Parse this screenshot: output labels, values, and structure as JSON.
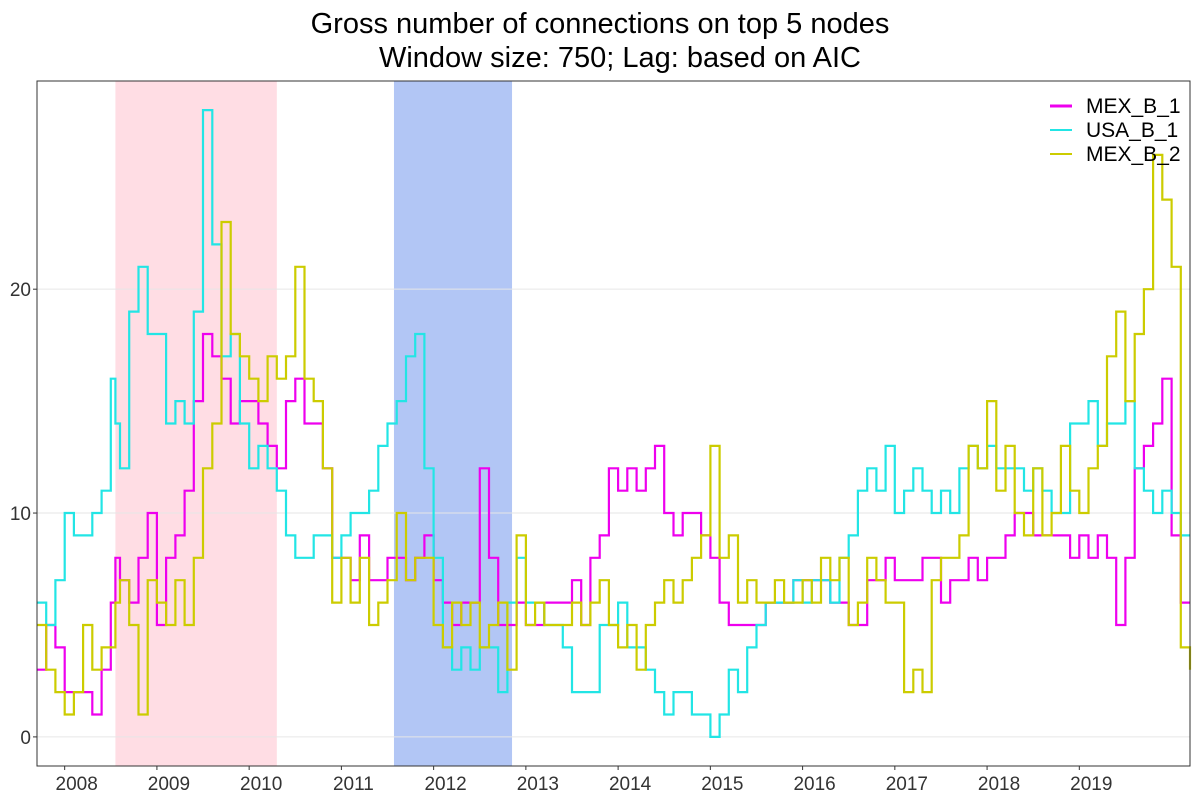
{
  "chart_data": {
    "type": "line",
    "title": "Gross number of connections on top 5 nodes",
    "subtitle": "Window size: 750; Lag: based on AIC",
    "xlabel": "",
    "ylabel": "",
    "xlim": [
      2007.7,
      2020.2
    ],
    "ylim": [
      -1.3,
      29.3
    ],
    "grid": true,
    "legend_position": "top-right",
    "x_ticks": [
      {
        "value": 2008.0,
        "label": "2008"
      },
      {
        "value": 2009.0,
        "label": "2009"
      },
      {
        "value": 2010.0,
        "label": "2010"
      },
      {
        "value": 2011.0,
        "label": "2011"
      },
      {
        "value": 2012.0,
        "label": "2012"
      },
      {
        "value": 2013.0,
        "label": "2013"
      },
      {
        "value": 2014.0,
        "label": "2014"
      },
      {
        "value": 2015.0,
        "label": "2015"
      },
      {
        "value": 2016.0,
        "label": "2016"
      },
      {
        "value": 2017.0,
        "label": "2017"
      },
      {
        "value": 2018.0,
        "label": "2018"
      },
      {
        "value": 2019.0,
        "label": "2019"
      }
    ],
    "y_ticks": [
      {
        "value": 0,
        "label": "0"
      },
      {
        "value": 10,
        "label": "10"
      },
      {
        "value": 20,
        "label": "20"
      }
    ],
    "shaded_regions": [
      {
        "x0": 2008.55,
        "x1": 2010.3,
        "color": "#FFDDE4"
      },
      {
        "x0": 2011.57,
        "x1": 2012.85,
        "color": "#B2C6F5"
      }
    ],
    "series": [
      {
        "name": "MEX_B_1",
        "color": "#EE00EE",
        "x": [
          2007.7,
          2007.8,
          2007.9,
          2008.0,
          2008.1,
          2008.2,
          2008.3,
          2008.4,
          2008.5,
          2008.55,
          2008.6,
          2008.7,
          2008.8,
          2008.9,
          2009.0,
          2009.1,
          2009.2,
          2009.3,
          2009.4,
          2009.5,
          2009.6,
          2009.7,
          2009.8,
          2009.9,
          2010.0,
          2010.1,
          2010.2,
          2010.3,
          2010.4,
          2010.5,
          2010.6,
          2010.7,
          2010.8,
          2010.9,
          2011.0,
          2011.1,
          2011.2,
          2011.3,
          2011.4,
          2011.5,
          2011.6,
          2011.7,
          2011.8,
          2011.9,
          2012.0,
          2012.1,
          2012.2,
          2012.3,
          2012.4,
          2012.5,
          2012.6,
          2012.7,
          2012.8,
          2012.9,
          2013.0,
          2013.1,
          2013.2,
          2013.3,
          2013.4,
          2013.5,
          2013.6,
          2013.7,
          2013.8,
          2013.9,
          2014.0,
          2014.1,
          2014.2,
          2014.3,
          2014.4,
          2014.5,
          2014.6,
          2014.7,
          2014.8,
          2014.9,
          2015.0,
          2015.1,
          2015.2,
          2015.3,
          2015.4,
          2015.5,
          2015.6,
          2015.7,
          2015.8,
          2015.9,
          2016.0,
          2016.1,
          2016.2,
          2016.3,
          2016.4,
          2016.5,
          2016.6,
          2016.7,
          2016.8,
          2016.9,
          2017.0,
          2017.1,
          2017.2,
          2017.3,
          2017.4,
          2017.5,
          2017.6,
          2017.7,
          2017.8,
          2017.9,
          2018.0,
          2018.1,
          2018.2,
          2018.3,
          2018.4,
          2018.5,
          2018.6,
          2018.7,
          2018.8,
          2018.9,
          2019.0,
          2019.1,
          2019.2,
          2019.3,
          2019.4,
          2019.5,
          2019.6,
          2019.7,
          2019.8,
          2019.9,
          2020.0,
          2020.1,
          2020.2
        ],
        "values": [
          3,
          5,
          4,
          2,
          2,
          2,
          1,
          3,
          6,
          8,
          7,
          6,
          8,
          10,
          5,
          8,
          9,
          11,
          15,
          18,
          17,
          16,
          14,
          15,
          15,
          14,
          13,
          12,
          15,
          16,
          14,
          14,
          12,
          8,
          8,
          7,
          9,
          7,
          7,
          8,
          8,
          7,
          8,
          9,
          7,
          6,
          5,
          6,
          6,
          12,
          8,
          5,
          5,
          6,
          5,
          5,
          6,
          6,
          6,
          7,
          5,
          8,
          9,
          12,
          11,
          12,
          11,
          12,
          13,
          10,
          9,
          10,
          10,
          9,
          8,
          6,
          5,
          5,
          5,
          5,
          6,
          6,
          6,
          7,
          7,
          7,
          7,
          6,
          6,
          5,
          5,
          7,
          7,
          8,
          7,
          7,
          7,
          8,
          8,
          6,
          7,
          7,
          8,
          7,
          8,
          8,
          9,
          10,
          10,
          9,
          9,
          9,
          9,
          8,
          9,
          8,
          9,
          8,
          5,
          8,
          12,
          13,
          14,
          16,
          9,
          6,
          6
        ]
      },
      {
        "name": "USA_B_1",
        "color": "#22E5E5",
        "x": [
          2007.7,
          2007.8,
          2007.9,
          2008.0,
          2008.1,
          2008.2,
          2008.3,
          2008.4,
          2008.5,
          2008.55,
          2008.6,
          2008.7,
          2008.8,
          2008.9,
          2009.0,
          2009.1,
          2009.2,
          2009.3,
          2009.4,
          2009.5,
          2009.6,
          2009.7,
          2009.8,
          2009.9,
          2010.0,
          2010.1,
          2010.2,
          2010.3,
          2010.4,
          2010.5,
          2010.6,
          2010.7,
          2010.8,
          2010.9,
          2011.0,
          2011.1,
          2011.2,
          2011.3,
          2011.4,
          2011.5,
          2011.6,
          2011.7,
          2011.8,
          2011.9,
          2012.0,
          2012.1,
          2012.2,
          2012.3,
          2012.4,
          2012.5,
          2012.6,
          2012.7,
          2012.8,
          2012.9,
          2013.0,
          2013.1,
          2013.2,
          2013.3,
          2013.4,
          2013.5,
          2013.6,
          2013.7,
          2013.8,
          2013.9,
          2014.0,
          2014.1,
          2014.2,
          2014.3,
          2014.4,
          2014.5,
          2014.6,
          2014.7,
          2014.8,
          2014.9,
          2015.0,
          2015.1,
          2015.2,
          2015.3,
          2015.4,
          2015.5,
          2015.6,
          2015.7,
          2015.8,
          2015.9,
          2016.0,
          2016.1,
          2016.2,
          2016.3,
          2016.4,
          2016.5,
          2016.6,
          2016.7,
          2016.8,
          2016.9,
          2017.0,
          2017.1,
          2017.2,
          2017.3,
          2017.4,
          2017.5,
          2017.6,
          2017.7,
          2017.8,
          2017.9,
          2018.0,
          2018.1,
          2018.2,
          2018.3,
          2018.4,
          2018.5,
          2018.6,
          2018.7,
          2018.8,
          2018.9,
          2019.0,
          2019.1,
          2019.2,
          2019.3,
          2019.4,
          2019.5,
          2019.6,
          2019.7,
          2019.8,
          2019.9,
          2020.0,
          2020.1,
          2020.2
        ],
        "values": [
          6,
          5,
          7,
          10,
          9,
          9,
          10,
          11,
          16,
          14,
          12,
          19,
          21,
          18,
          18,
          14,
          15,
          14,
          19,
          28,
          22,
          17,
          18,
          14,
          12,
          13,
          12,
          11,
          9,
          8,
          8,
          9,
          9,
          8,
          9,
          10,
          10,
          11,
          13,
          14,
          15,
          17,
          18,
          12,
          8,
          4,
          3,
          4,
          3,
          4,
          4,
          2,
          6,
          8,
          6,
          6,
          5,
          5,
          4,
          2,
          2,
          2,
          5,
          5,
          6,
          4,
          4,
          3,
          2,
          1,
          2,
          2,
          1,
          1,
          0,
          1,
          3,
          2,
          4,
          5,
          6,
          6,
          6,
          7,
          6,
          7,
          7,
          6,
          8,
          9,
          11,
          12,
          11,
          13,
          10,
          11,
          12,
          11,
          10,
          11,
          10,
          12,
          13,
          12,
          13,
          12,
          12,
          12,
          11,
          12,
          11,
          10,
          10,
          14,
          14,
          15,
          13,
          14,
          14,
          15,
          12,
          11,
          10,
          11,
          10,
          9,
          9
        ]
      },
      {
        "name": "MEX_B_2",
        "color": "#CCCC00",
        "x": [
          2007.7,
          2007.8,
          2007.9,
          2008.0,
          2008.1,
          2008.2,
          2008.3,
          2008.4,
          2008.5,
          2008.55,
          2008.6,
          2008.7,
          2008.8,
          2008.9,
          2009.0,
          2009.1,
          2009.2,
          2009.3,
          2009.4,
          2009.5,
          2009.6,
          2009.7,
          2009.8,
          2009.9,
          2010.0,
          2010.1,
          2010.2,
          2010.3,
          2010.4,
          2010.5,
          2010.6,
          2010.7,
          2010.8,
          2010.9,
          2011.0,
          2011.1,
          2011.2,
          2011.3,
          2011.4,
          2011.5,
          2011.6,
          2011.7,
          2011.8,
          2011.9,
          2012.0,
          2012.1,
          2012.2,
          2012.3,
          2012.4,
          2012.5,
          2012.6,
          2012.7,
          2012.8,
          2012.9,
          2013.0,
          2013.1,
          2013.2,
          2013.3,
          2013.4,
          2013.5,
          2013.6,
          2013.7,
          2013.8,
          2013.9,
          2014.0,
          2014.1,
          2014.2,
          2014.3,
          2014.4,
          2014.5,
          2014.6,
          2014.7,
          2014.8,
          2014.9,
          2015.0,
          2015.1,
          2015.2,
          2015.3,
          2015.4,
          2015.5,
          2015.6,
          2015.7,
          2015.8,
          2015.9,
          2016.0,
          2016.1,
          2016.2,
          2016.3,
          2016.4,
          2016.5,
          2016.6,
          2016.7,
          2016.8,
          2016.9,
          2017.0,
          2017.1,
          2017.2,
          2017.3,
          2017.4,
          2017.5,
          2017.6,
          2017.7,
          2017.8,
          2017.9,
          2018.0,
          2018.1,
          2018.2,
          2018.3,
          2018.4,
          2018.5,
          2018.6,
          2018.7,
          2018.8,
          2018.9,
          2019.0,
          2019.1,
          2019.2,
          2019.3,
          2019.4,
          2019.5,
          2019.6,
          2019.7,
          2019.8,
          2019.9,
          2020.0,
          2020.1,
          2020.2
        ],
        "values": [
          5,
          3,
          2,
          1,
          2,
          5,
          3,
          4,
          4,
          6,
          7,
          5,
          1,
          7,
          6,
          5,
          7,
          5,
          8,
          12,
          14,
          23,
          18,
          17,
          16,
          15,
          17,
          16,
          17,
          21,
          16,
          15,
          12,
          6,
          8,
          6,
          8,
          5,
          6,
          7,
          10,
          7,
          8,
          8,
          5,
          4,
          6,
          5,
          6,
          4,
          5,
          6,
          3,
          9,
          5,
          6,
          5,
          5,
          5,
          6,
          5,
          6,
          7,
          5,
          4,
          5,
          3,
          5,
          6,
          7,
          6,
          7,
          8,
          9,
          13,
          8,
          9,
          6,
          7,
          6,
          6,
          7,
          6,
          6,
          7,
          6,
          8,
          7,
          8,
          5,
          6,
          8,
          7,
          6,
          6,
          2,
          3,
          2,
          7,
          8,
          8,
          9,
          13,
          12,
          15,
          11,
          13,
          10,
          9,
          12,
          9,
          10,
          13,
          11,
          10,
          12,
          13,
          17,
          19,
          15,
          18,
          20,
          26,
          24,
          21,
          4,
          3
        ]
      }
    ]
  }
}
